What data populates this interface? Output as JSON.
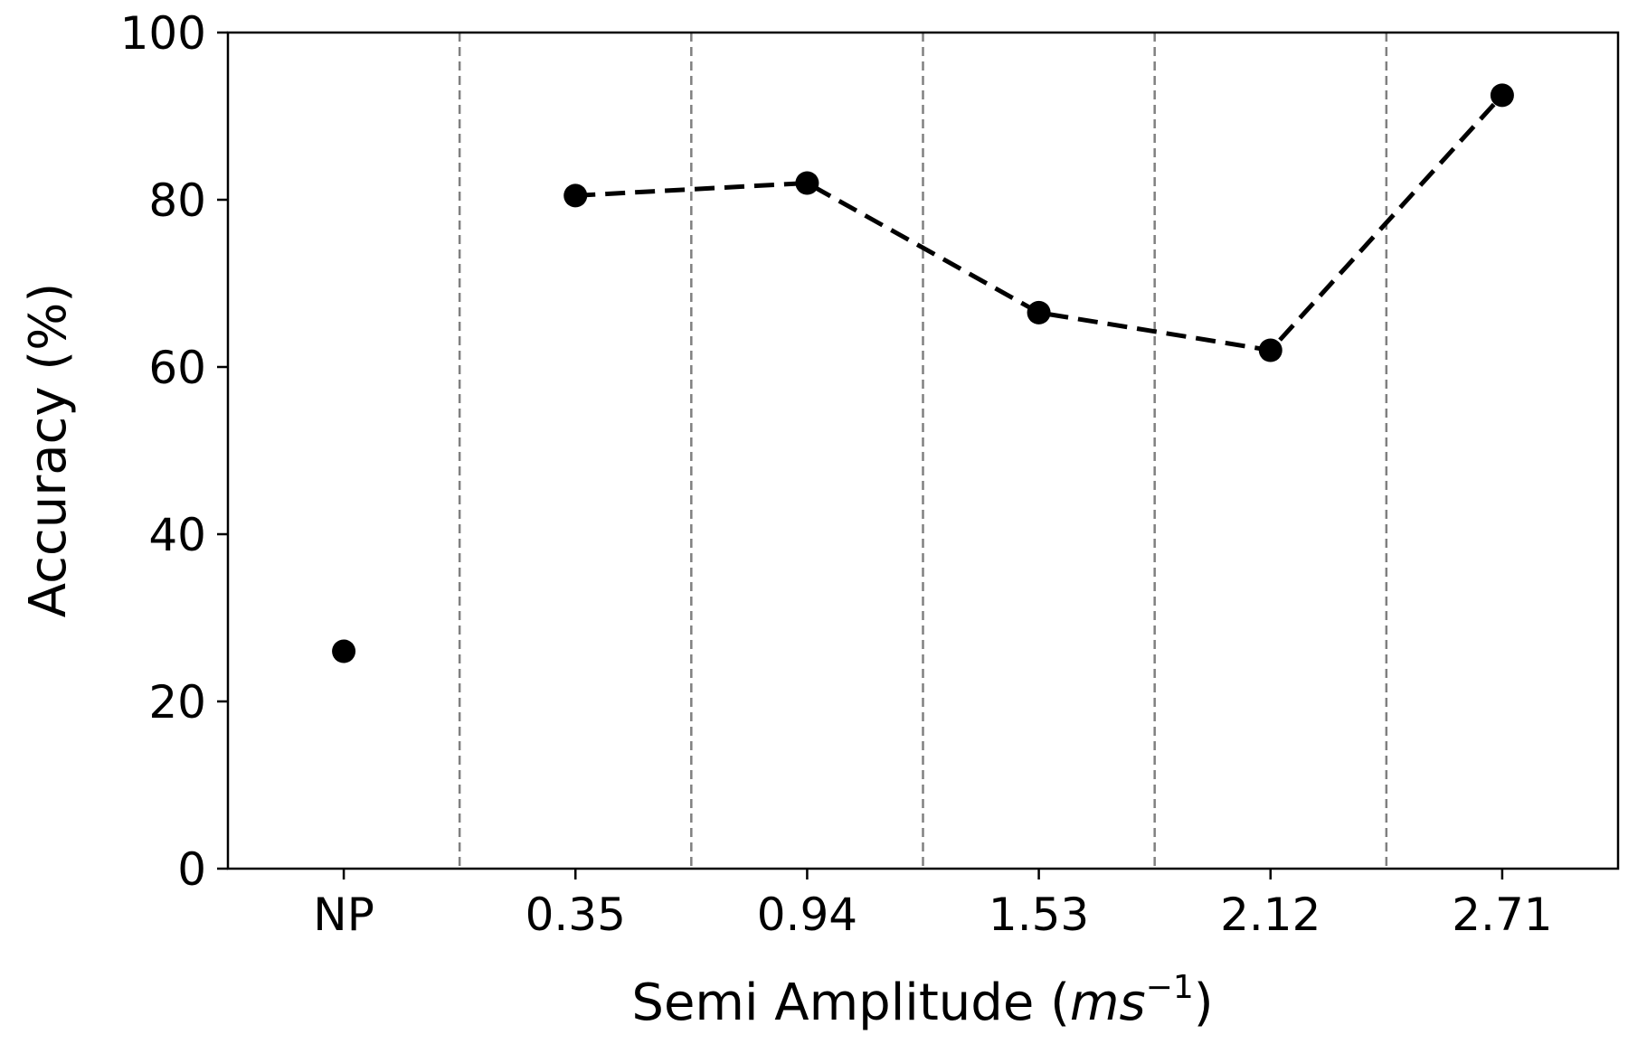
{
  "chart_data": {
    "type": "scatter",
    "categories": [
      "NP",
      "0.35",
      "0.94",
      "1.53",
      "2.12",
      "2.71"
    ],
    "points": [
      {
        "category": "NP",
        "value": 26
      },
      {
        "category": "0.35",
        "value": 80.5
      },
      {
        "category": "0.94",
        "value": 82
      },
      {
        "category": "1.53",
        "value": 66.5
      },
      {
        "category": "2.12",
        "value": 62
      },
      {
        "category": "2.71",
        "value": 92.5
      }
    ],
    "connected_line": {
      "style": "dashed",
      "from_category": "0.35",
      "to_category": "2.71"
    },
    "xlabel": {
      "main": "Semi Amplitude (",
      "var": "ms",
      "sup": "−1",
      "close": ")"
    },
    "ylabel": "Accuracy (%)",
    "ylim": [
      0,
      100
    ],
    "yticks": [
      "0",
      "20",
      "40",
      "60",
      "80",
      "100"
    ],
    "separators": "dashed vertical lines between categories",
    "colors": {
      "marker": "#000000",
      "line": "#000000",
      "separator": "#808080"
    }
  }
}
